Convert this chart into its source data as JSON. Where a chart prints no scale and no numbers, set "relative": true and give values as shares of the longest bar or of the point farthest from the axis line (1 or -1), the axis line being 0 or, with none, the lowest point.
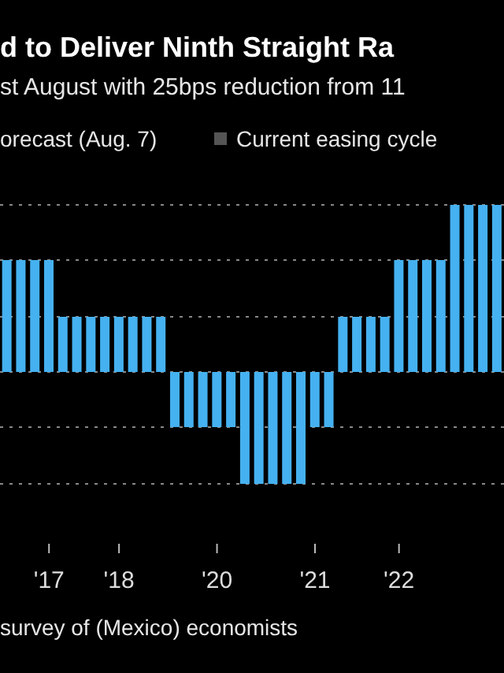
{
  "chart_data": {
    "type": "bar",
    "title": "d to Deliver Ninth Straight Ra",
    "subtitle": "st August with 25bps reduction from 11",
    "categories": [
      null,
      null,
      null,
      "'17",
      null,
      null,
      null,
      null,
      "'18",
      null,
      null,
      null,
      null,
      null,
      null,
      "'20",
      null,
      null,
      null,
      null,
      null,
      null,
      "'21",
      null,
      null,
      null,
      null,
      null,
      "'22",
      null,
      null,
      null,
      null,
      null,
      null,
      null
    ],
    "values": [
      0.67,
      0.67,
      0.67,
      0.67,
      0.33,
      0.33,
      0.33,
      0.33,
      0.33,
      0.33,
      0.33,
      0.33,
      -0.33,
      -0.33,
      -0.33,
      -0.33,
      -0.33,
      -0.67,
      -0.67,
      -0.67,
      -0.67,
      -0.67,
      -0.33,
      -0.33,
      0.33,
      0.33,
      0.33,
      0.33,
      0.67,
      0.67,
      0.67,
      0.67,
      1,
      1,
      1,
      1
    ],
    "color": "#45b1f0",
    "relative": true,
    "grid": "y",
    "annotations": [
      "orecast (Aug. 7)",
      "Current easing cycle",
      "survey of (Mexico) economists"
    ]
  }
}
